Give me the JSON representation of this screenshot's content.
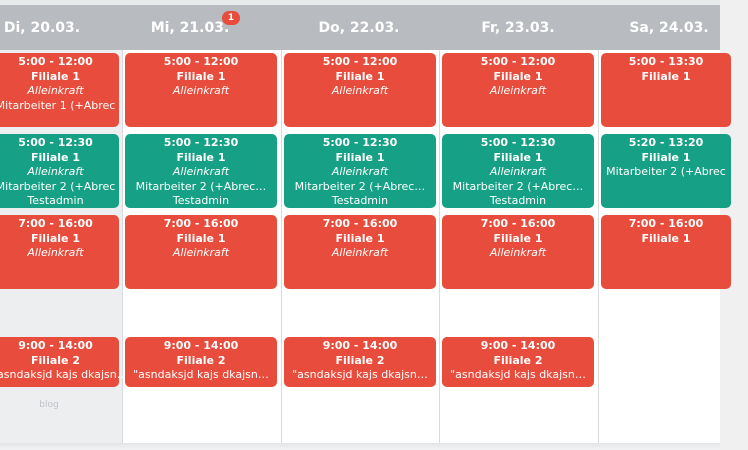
{
  "days": [
    {
      "label": "Di, 20.03."
    },
    {
      "label": "Mi, 21.03.",
      "badge": "1"
    },
    {
      "label": "Do, 22.03."
    },
    {
      "label": "Fr, 23.03."
    },
    {
      "label": "Sa, 24.03."
    }
  ],
  "shifts": {
    "col0": [
      {
        "time": "5:00 - 12:00",
        "branch": "Filiale 1",
        "role": "Alleinkraft",
        "extra": "Mitarbeiter 1 (+Abrec",
        "color": "red"
      },
      {
        "time": "5:00 - 12:30",
        "branch": "Filiale 1",
        "role": "Alleinkraft",
        "extra": "Mitarbeiter 2 (+Abrec",
        "extra2": "Testadmin",
        "color": "green"
      },
      {
        "time": "7:00 - 16:00",
        "branch": "Filiale 1",
        "role": "Alleinkraft",
        "color": "red"
      },
      {
        "time": "9:00 - 14:00",
        "branch": "Filiale 2",
        "extra": "\"asndaksjd kajs dkajsn…",
        "color": "red"
      }
    ],
    "col1": [
      {
        "time": "5:00 - 12:00",
        "branch": "Filiale 1",
        "role": "Alleinkraft",
        "color": "red"
      },
      {
        "time": "5:00 - 12:30",
        "branch": "Filiale 1",
        "role": "Alleinkraft",
        "extra": "Mitarbeiter 2 (+Abrec…",
        "extra2": "Testadmin",
        "color": "green"
      },
      {
        "time": "7:00 - 16:00",
        "branch": "Filiale 1",
        "role": "Alleinkraft",
        "color": "red"
      },
      {
        "time": "9:00 - 14:00",
        "branch": "Filiale 2",
        "extra": "\"asndaksjd kajs dkajsn…",
        "color": "red"
      }
    ],
    "col2": [
      {
        "time": "5:00 - 12:00",
        "branch": "Filiale 1",
        "role": "Alleinkraft",
        "color": "red"
      },
      {
        "time": "5:00 - 12:30",
        "branch": "Filiale 1",
        "role": "Alleinkraft",
        "extra": "Mitarbeiter 2 (+Abrec…",
        "extra2": "Testadmin",
        "color": "green"
      },
      {
        "time": "7:00 - 16:00",
        "branch": "Filiale 1",
        "role": "Alleinkraft",
        "color": "red"
      },
      {
        "time": "9:00 - 14:00",
        "branch": "Filiale 2",
        "extra": "\"asndaksjd kajs dkajsn…",
        "color": "red"
      }
    ],
    "col3": [
      {
        "time": "5:00 - 12:00",
        "branch": "Filiale 1",
        "role": "Alleinkraft",
        "color": "red"
      },
      {
        "time": "5:00 - 12:30",
        "branch": "Filiale 1",
        "role": "Alleinkraft",
        "extra": "Mitarbeiter 2 (+Abrec…",
        "extra2": "Testadmin",
        "color": "green"
      },
      {
        "time": "7:00 - 16:00",
        "branch": "Filiale 1",
        "role": "Alleinkraft",
        "color": "red"
      },
      {
        "time": "9:00 - 14:00",
        "branch": "Filiale 2",
        "extra": "\"asndaksjd kajs dkajsn…",
        "color": "red"
      }
    ],
    "col4": [
      {
        "time": "5:00 - 13:30",
        "branch": "Filiale 1",
        "color": "red"
      },
      {
        "time": "5:20 - 13:20",
        "branch": "Filiale 1",
        "extra": "Mitarbeiter 2 (+Abrec",
        "color": "green"
      },
      {
        "time": "7:00 - 16:00",
        "branch": "Filiale 1",
        "color": "red"
      }
    ]
  },
  "footer_text": "blog",
  "colors": {
    "red": "#e74c3c",
    "green": "#16a085",
    "header": "#b8bbbf"
  }
}
